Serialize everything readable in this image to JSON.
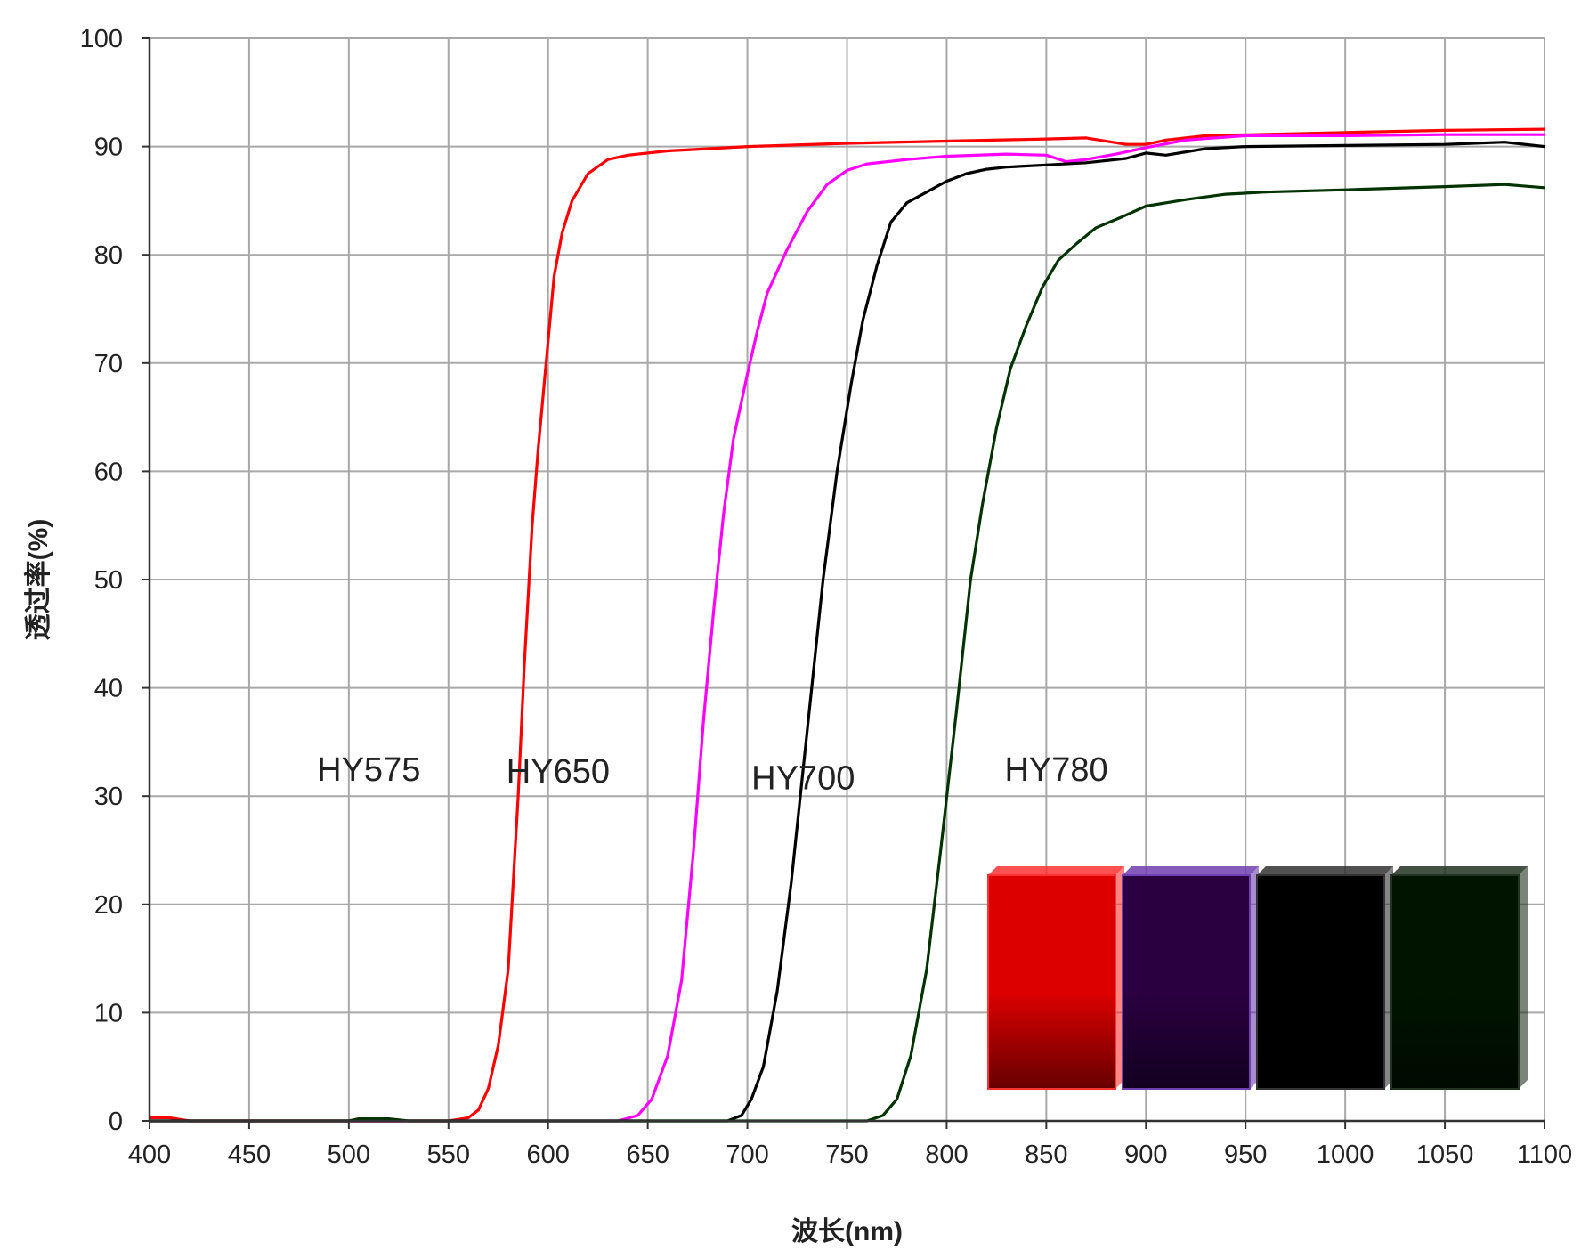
{
  "chart_data": {
    "type": "line",
    "title": "",
    "xlabel": "波长(nm)",
    "ylabel": "透过率(%)",
    "xlim": [
      400,
      1100
    ],
    "ylim": [
      0,
      100
    ],
    "x_ticks": [
      400,
      450,
      500,
      550,
      600,
      650,
      700,
      750,
      800,
      850,
      900,
      950,
      1000,
      1050,
      1100
    ],
    "y_ticks": [
      0,
      10,
      20,
      30,
      40,
      50,
      60,
      70,
      80,
      90,
      100
    ],
    "grid": true,
    "legend": "none",
    "series": [
      {
        "name": "HY575",
        "color": "#ff0000",
        "points": [
          [
            400,
            0.3
          ],
          [
            410,
            0.3
          ],
          [
            420,
            0
          ],
          [
            550,
            0
          ],
          [
            560,
            0.3
          ],
          [
            565,
            1
          ],
          [
            570,
            3
          ],
          [
            575,
            7
          ],
          [
            580,
            14
          ],
          [
            585,
            30
          ],
          [
            588,
            42
          ],
          [
            592,
            55
          ],
          [
            595,
            62
          ],
          [
            600,
            72
          ],
          [
            603,
            78
          ],
          [
            607,
            82
          ],
          [
            612,
            85
          ],
          [
            620,
            87.5
          ],
          [
            630,
            88.8
          ],
          [
            640,
            89.2
          ],
          [
            660,
            89.6
          ],
          [
            700,
            90
          ],
          [
            750,
            90.3
          ],
          [
            800,
            90.5
          ],
          [
            850,
            90.7
          ],
          [
            870,
            90.8
          ],
          [
            890,
            90.2
          ],
          [
            900,
            90.2
          ],
          [
            910,
            90.6
          ],
          [
            930,
            91
          ],
          [
            1000,
            91.3
          ],
          [
            1050,
            91.5
          ],
          [
            1100,
            91.6
          ]
        ]
      },
      {
        "name": "HY650",
        "color": "#ff00ff",
        "points": [
          [
            400,
            0
          ],
          [
            635,
            0
          ],
          [
            645,
            0.5
          ],
          [
            652,
            2
          ],
          [
            660,
            6
          ],
          [
            667,
            13
          ],
          [
            673,
            25
          ],
          [
            678,
            37
          ],
          [
            683,
            47
          ],
          [
            688,
            56
          ],
          [
            693,
            63
          ],
          [
            700,
            69
          ],
          [
            705,
            73
          ],
          [
            710,
            76.5
          ],
          [
            720,
            80.5
          ],
          [
            730,
            84
          ],
          [
            740,
            86.5
          ],
          [
            750,
            87.8
          ],
          [
            760,
            88.4
          ],
          [
            780,
            88.8
          ],
          [
            800,
            89.1
          ],
          [
            830,
            89.3
          ],
          [
            850,
            89.2
          ],
          [
            860,
            88.6
          ],
          [
            870,
            88.8
          ],
          [
            885,
            89.3
          ],
          [
            900,
            89.9
          ],
          [
            920,
            90.6
          ],
          [
            950,
            91
          ],
          [
            1000,
            91
          ],
          [
            1050,
            91.1
          ],
          [
            1100,
            91.1
          ]
        ]
      },
      {
        "name": "HY700",
        "color": "#000000",
        "points": [
          [
            400,
            0
          ],
          [
            690,
            0
          ],
          [
            697,
            0.5
          ],
          [
            702,
            2
          ],
          [
            708,
            5
          ],
          [
            715,
            12
          ],
          [
            722,
            22
          ],
          [
            730,
            36
          ],
          [
            738,
            50
          ],
          [
            745,
            60
          ],
          [
            752,
            68
          ],
          [
            758,
            74
          ],
          [
            765,
            79
          ],
          [
            772,
            83
          ],
          [
            780,
            84.8
          ],
          [
            790,
            85.8
          ],
          [
            800,
            86.8
          ],
          [
            810,
            87.5
          ],
          [
            820,
            87.9
          ],
          [
            830,
            88.1
          ],
          [
            850,
            88.3
          ],
          [
            870,
            88.5
          ],
          [
            890,
            88.9
          ],
          [
            900,
            89.4
          ],
          [
            910,
            89.2
          ],
          [
            930,
            89.8
          ],
          [
            950,
            90
          ],
          [
            1000,
            90.1
          ],
          [
            1050,
            90.2
          ],
          [
            1080,
            90.4
          ],
          [
            1100,
            90
          ]
        ]
      },
      {
        "name": "HY780",
        "color": "#003300",
        "points": [
          [
            400,
            0
          ],
          [
            500,
            0
          ],
          [
            505,
            0.2
          ],
          [
            520,
            0.2
          ],
          [
            530,
            0
          ],
          [
            760,
            0
          ],
          [
            768,
            0.5
          ],
          [
            775,
            2
          ],
          [
            782,
            6
          ],
          [
            790,
            14
          ],
          [
            797,
            25
          ],
          [
            805,
            38
          ],
          [
            812,
            50
          ],
          [
            818,
            57
          ],
          [
            825,
            64
          ],
          [
            832,
            69.5
          ],
          [
            840,
            73.5
          ],
          [
            848,
            77
          ],
          [
            856,
            79.5
          ],
          [
            865,
            81
          ],
          [
            875,
            82.5
          ],
          [
            888,
            83.5
          ],
          [
            900,
            84.5
          ],
          [
            920,
            85.1
          ],
          [
            940,
            85.6
          ],
          [
            960,
            85.8
          ],
          [
            1000,
            86
          ],
          [
            1050,
            86.3
          ],
          [
            1080,
            86.5
          ],
          [
            1100,
            86.2
          ]
        ]
      }
    ],
    "annotations": [
      {
        "text": "HY575",
        "x": 510,
        "y": 32.5
      },
      {
        "text": "HY650",
        "x": 605,
        "y": 32.3
      },
      {
        "text": "HY700",
        "x": 728,
        "y": 31.7
      },
      {
        "text": "HY780",
        "x": 855,
        "y": 32.5
      }
    ],
    "swatches": [
      {
        "name": "red-filter-swatch",
        "top": "#dd0000",
        "bottom": "#660000",
        "edge": "#ff3333"
      },
      {
        "name": "purple-filter-swatch",
        "top": "#2a0040",
        "bottom": "#120020",
        "edge": "#7040b0"
      },
      {
        "name": "black-filter-swatch",
        "top": "#000000",
        "bottom": "#000000",
        "edge": "#333333"
      },
      {
        "name": "dark-green-filter-swatch",
        "top": "#001400",
        "bottom": "#000a00",
        "edge": "#223322"
      }
    ]
  }
}
